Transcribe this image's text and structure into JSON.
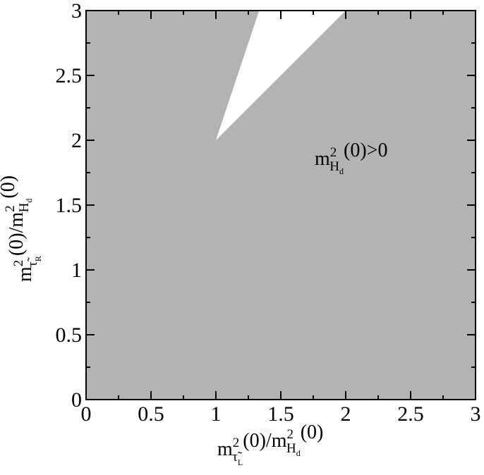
{
  "chart_data": {
    "type": "region",
    "xlabel": [
      "m",
      "2",
      "τ̃",
      "L",
      "(0)/m",
      "2",
      "H",
      "d",
      "(0)"
    ],
    "ylabel": [
      "m",
      "2",
      "τ̃",
      "R",
      "(0)/m",
      "2",
      "H",
      "d",
      "(0)"
    ],
    "annotation": [
      "m",
      "2",
      "H",
      "d",
      "(0)>0"
    ],
    "xlim": [
      0,
      3
    ],
    "ylim": [
      0,
      3
    ],
    "xticks": [
      0,
      0.5,
      1,
      1.5,
      2,
      2.5,
      3
    ],
    "yticks": [
      0,
      0.5,
      1,
      1.5,
      2,
      2.5,
      3
    ],
    "minor_xticks": [
      0.25,
      0.75,
      1.25,
      1.75,
      2.25,
      2.75
    ],
    "minor_yticks": [
      0.25,
      0.75,
      1.25,
      1.75,
      2.25,
      2.75
    ],
    "regions": [
      {
        "color": "#b3b3b3",
        "x": [
          0,
          3,
          3,
          0
        ],
        "y": [
          0,
          0,
          3,
          3
        ]
      },
      {
        "color": "#ffffff",
        "x": [
          1,
          1.333,
          2
        ],
        "y": [
          2,
          3,
          3
        ]
      }
    ]
  }
}
